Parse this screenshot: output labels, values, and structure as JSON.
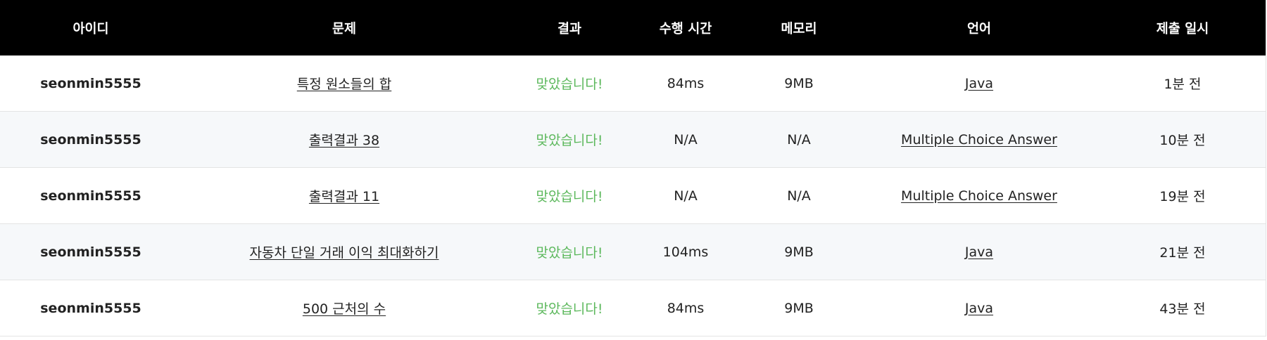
{
  "columns": {
    "user_id": "아이디",
    "problem": "문제",
    "result": "결과",
    "time": "수행 시간",
    "memory": "메모리",
    "language": "언어",
    "submitted": "제출 일시"
  },
  "colors": {
    "header_bg": "#000000",
    "accepted": "#5cb85c",
    "row_alt": "#f6f8fa"
  },
  "rows": [
    {
      "user_id": "seonmin5555",
      "problem": "특정 원소들의 합",
      "result": "맞았습니다!",
      "time": "84ms",
      "memory": "9MB",
      "language": "Java",
      "submitted": "1분 전"
    },
    {
      "user_id": "seonmin5555",
      "problem": "출력결과 38",
      "result": "맞았습니다!",
      "time": "N/A",
      "memory": "N/A",
      "language": "Multiple Choice Answer",
      "submitted": "10분 전"
    },
    {
      "user_id": "seonmin5555",
      "problem": "출력결과 11",
      "result": "맞았습니다!",
      "time": "N/A",
      "memory": "N/A",
      "language": "Multiple Choice Answer",
      "submitted": "19분 전"
    },
    {
      "user_id": "seonmin5555",
      "problem": "자동차 단일 거래 이익 최대화하기",
      "result": "맞았습니다!",
      "time": "104ms",
      "memory": "9MB",
      "language": "Java",
      "submitted": "21분 전"
    },
    {
      "user_id": "seonmin5555",
      "problem": "500 근처의 수",
      "result": "맞았습니다!",
      "time": "84ms",
      "memory": "9MB",
      "language": "Java",
      "submitted": "43분 전"
    }
  ]
}
